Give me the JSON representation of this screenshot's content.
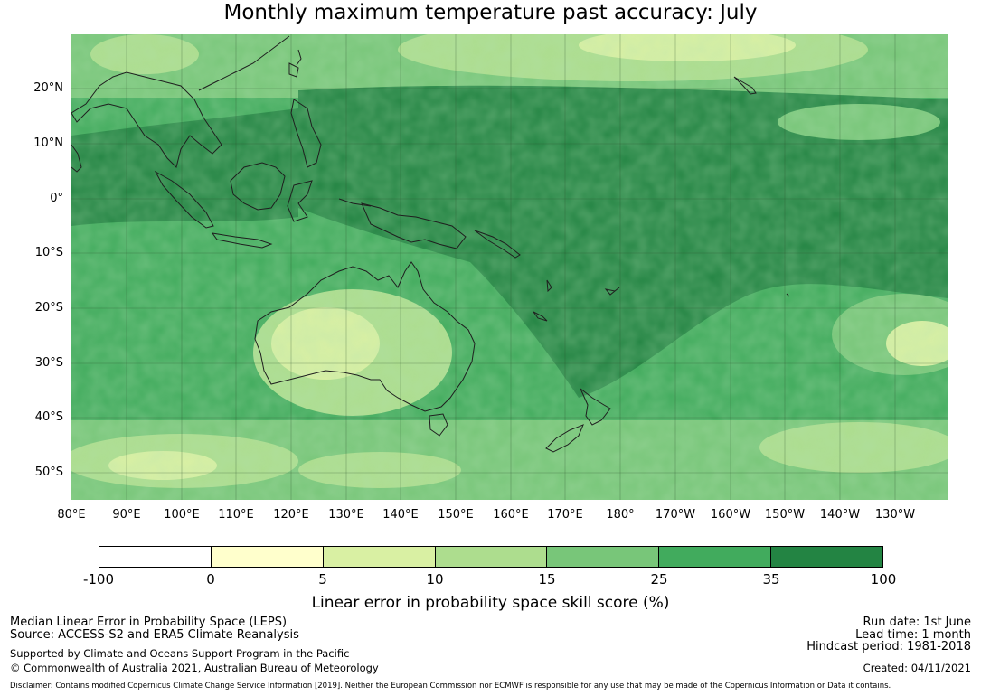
{
  "title": "Monthly maximum temperature past accuracy: July",
  "map": {
    "lat_labels": [
      "20°N",
      "10°N",
      "0°",
      "10°S",
      "20°S",
      "30°S",
      "40°S",
      "50°S"
    ],
    "lon_labels": [
      "80°E",
      "90°E",
      "100°E",
      "110°E",
      "120°E",
      "130°E",
      "140°E",
      "150°E",
      "160°E",
      "170°E",
      "180°",
      "170°W",
      "160°W",
      "150°W",
      "140°W",
      "130°W"
    ],
    "colors": [
      "#ffffff",
      "#ffffcc",
      "#d9f0a3",
      "#addd8e",
      "#78c679",
      "#41ab5d",
      "#238443"
    ],
    "land_color": "#1f1f1f"
  },
  "colorbar": {
    "ticks": [
      "-100",
      "0",
      "5",
      "10",
      "15",
      "25",
      "35",
      "100"
    ],
    "label": "Linear error in probability space skill score (%)"
  },
  "footer": {
    "line1": "Median Linear Error in Probability Space (LEPS)",
    "line2": "Source: ACCESS-S2 and ERA5 Climate Reanalysis",
    "line3": "Supported by Climate and Oceans Support Program in the Pacific",
    "line4": "© Commonwealth of Australia 2021, Australian Bureau of Meteorology",
    "run_date": "Run date: 1st June",
    "lead_time": "Lead time: 1 month",
    "hindcast": "Hindcast period: 1981-2018",
    "created": "Created: 04/11/2021",
    "disclaimer": "Disclaimer: Contains modified Copernicus Climate Change Service Information [2019]. Neither the European Commission nor ECMWF is responsible for any use that may be made of the Copernicus Information or Data it contains."
  }
}
